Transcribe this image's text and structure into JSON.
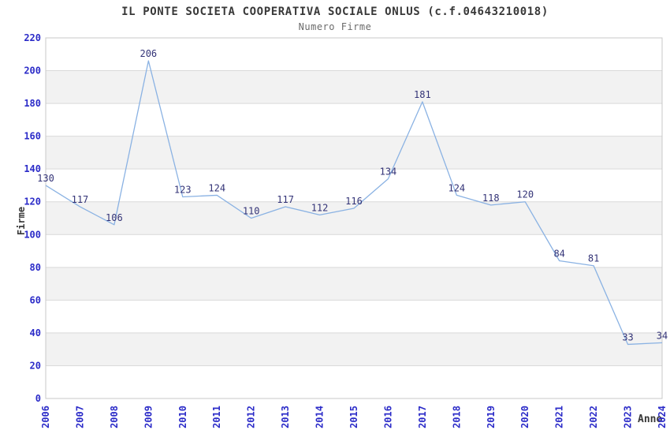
{
  "chart_data": {
    "type": "line",
    "title": "IL PONTE SOCIETA COOPERATIVA SOCIALE ONLUS (c.f.04643210018)",
    "subtitle": "Numero Firme",
    "xlabel": "Anno",
    "ylabel": "Firme",
    "categories": [
      "2006",
      "2007",
      "2008",
      "2009",
      "2010",
      "2011",
      "2012",
      "2013",
      "2014",
      "2015",
      "2016",
      "2017",
      "2018",
      "2019",
      "2020",
      "2021",
      "2022",
      "2023",
      "2024"
    ],
    "series": [
      {
        "name": "Numero Firme",
        "values": [
          130,
          117,
          106,
          206,
          123,
          124,
          110,
          117,
          112,
          116,
          134,
          181,
          124,
          118,
          120,
          84,
          81,
          33,
          34
        ]
      }
    ],
    "ylim": [
      0,
      220
    ],
    "ytick_step": 20,
    "grid": true,
    "grid_bands": "alternating",
    "legend": "none",
    "data_labels": true,
    "x_tick_rotation": -90,
    "colors": {
      "line": "#8ab2e3",
      "data_label": "#333377",
      "tick_label": "#2b2bc8",
      "title": "#383838",
      "subtitle": "#6b6b6b",
      "axis_title": "#383838",
      "band": "#f2f2f2",
      "gridline": "#d9d9d9",
      "plot_border": "#c8c8c8",
      "background": "#ffffff"
    }
  }
}
